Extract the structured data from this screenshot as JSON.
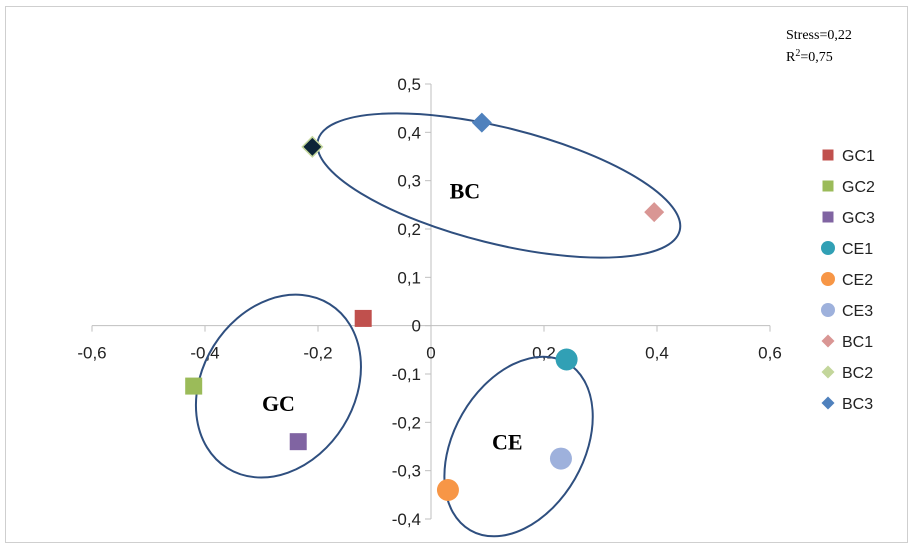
{
  "chart_data": {
    "type": "scatter",
    "xlim": [
      -0.6,
      0.6
    ],
    "ylim": [
      -0.4,
      0.5
    ],
    "x_ticks": [
      -0.6,
      -0.4,
      -0.2,
      0,
      0.2,
      0.4,
      0.6
    ],
    "x_tick_labels": [
      "-0,6",
      "-0,4",
      "-0,2",
      "0",
      "0,2",
      "0,4",
      "0,6"
    ],
    "y_ticks": [
      0.5,
      0.4,
      0.3,
      0.2,
      0.1,
      0,
      -0.1,
      -0.2,
      -0.3,
      -0.4
    ],
    "y_tick_labels": [
      "0,5",
      "0,4",
      "0,3",
      "0,2",
      "0,1",
      "0",
      "-0,1",
      "-0,2",
      "-0,3",
      "-0,4"
    ],
    "grid": false,
    "legend_position": "right",
    "annotations": {
      "stress": "Stress=0,22",
      "r2_prefix": "R",
      "r2_sup": "2",
      "r2_value": "=0,75"
    },
    "series": [
      {
        "name": "GC1",
        "marker": "square",
        "color": "#c0504d",
        "x": -0.12,
        "y": 0.015
      },
      {
        "name": "GC2",
        "marker": "square",
        "color": "#9bbb59",
        "x": -0.42,
        "y": -0.125
      },
      {
        "name": "GC3",
        "marker": "square",
        "color": "#8064a2",
        "x": -0.235,
        "y": -0.24
      },
      {
        "name": "CE1",
        "marker": "circle",
        "color": "#31a0b5",
        "x": 0.24,
        "y": -0.07
      },
      {
        "name": "CE2",
        "marker": "circle",
        "color": "#f79646",
        "x": 0.03,
        "y": -0.34
      },
      {
        "name": "CE3",
        "marker": "circle",
        "color": "#9eb1dc",
        "x": 0.23,
        "y": -0.275
      },
      {
        "name": "BC1",
        "marker": "diamond",
        "color": "#d99694",
        "x": 0.395,
        "y": 0.235
      },
      {
        "name": "BC2",
        "marker": "diamond",
        "color": "#c3d69b",
        "x": -0.21,
        "y": 0.37,
        "marker_fill_override": "#0d2538"
      },
      {
        "name": "BC3",
        "marker": "diamond",
        "color": "#4f81bd",
        "x": 0.09,
        "y": 0.42
      }
    ],
    "groups": [
      {
        "label": "BC",
        "cx": 0.12,
        "cy": 0.29,
        "rx": 0.33,
        "ry": 0.12,
        "rotate_deg": 14,
        "label_x": 0.06,
        "label_y": 0.28
      },
      {
        "label": "GC",
        "cx": -0.27,
        "cy": -0.125,
        "rx": 0.135,
        "ry": 0.2,
        "rotate_deg": 32,
        "label_x": -0.27,
        "label_y": -0.16
      },
      {
        "label": "CE",
        "cx": 0.155,
        "cy": -0.25,
        "rx": 0.115,
        "ry": 0.2,
        "rotate_deg": 30,
        "label_x": 0.135,
        "label_y": -0.24
      }
    ]
  }
}
